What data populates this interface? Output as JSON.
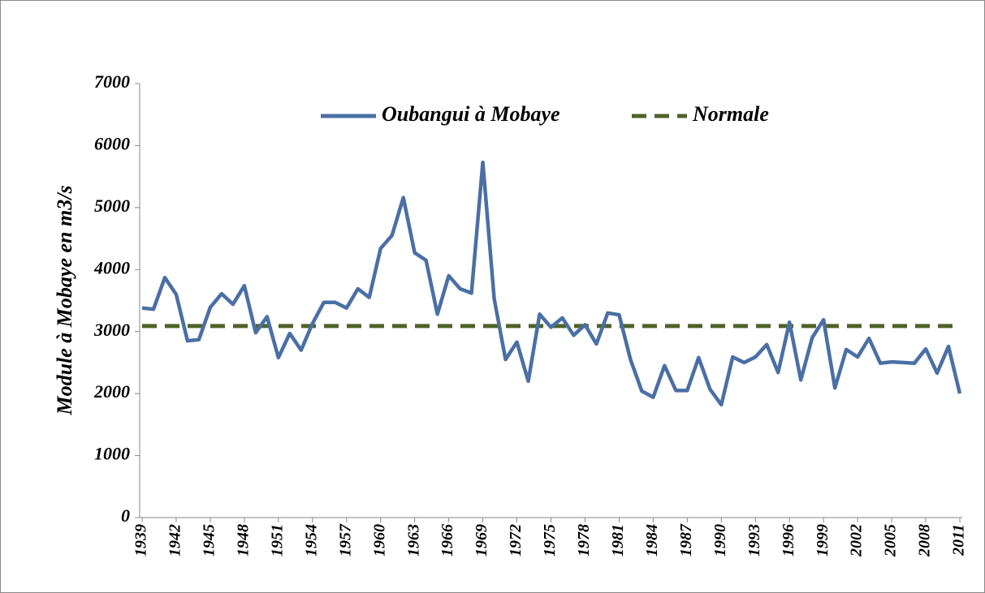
{
  "chart_data": {
    "type": "line",
    "y_label": "Module à Mobaye en m3/s",
    "x": [
      1939,
      1940,
      1941,
      1942,
      1943,
      1944,
      1945,
      1946,
      1947,
      1948,
      1949,
      1950,
      1951,
      1952,
      1953,
      1954,
      1955,
      1956,
      1957,
      1958,
      1959,
      1960,
      1961,
      1962,
      1963,
      1964,
      1965,
      1966,
      1967,
      1968,
      1969,
      1970,
      1971,
      1972,
      1973,
      1974,
      1975,
      1976,
      1977,
      1978,
      1979,
      1980,
      1981,
      1982,
      1983,
      1984,
      1985,
      1986,
      1987,
      1988,
      1989,
      1990,
      1991,
      1992,
      1993,
      1994,
      1995,
      1996,
      1997,
      1998,
      1999,
      2000,
      2001,
      2002,
      2003,
      2004,
      2005,
      2006,
      2007,
      2008,
      2009,
      2010,
      2011
    ],
    "series": [
      {
        "name": "Oubangui à Mobaye",
        "color": "#4a6fa5",
        "dash": false,
        "values": [
          3380,
          3360,
          3870,
          3600,
          2850,
          2870,
          3390,
          3610,
          3440,
          3740,
          2980,
          3240,
          2580,
          2970,
          2700,
          3130,
          3470,
          3470,
          3380,
          3690,
          3550,
          4340,
          4550,
          5160,
          4270,
          4150,
          3280,
          3900,
          3690,
          3620,
          5730,
          3530,
          2550,
          2830,
          2200,
          3280,
          3070,
          3220,
          2940,
          3110,
          2800,
          3300,
          3270,
          2550,
          2040,
          1940,
          2450,
          2050,
          2050,
          2580,
          2070,
          1820,
          2590,
          2500,
          2590,
          2790,
          2340,
          3150,
          2220,
          2900,
          3190,
          2090,
          2710,
          2590,
          2890,
          2490,
          2510,
          2500,
          2490,
          2720,
          2330,
          2760,
          2000
        ]
      },
      {
        "name": "Normale",
        "color": "#4f6228",
        "dash": true,
        "values": [
          3090,
          3090,
          3090,
          3090,
          3090,
          3090,
          3090,
          3090,
          3090,
          3090,
          3090,
          3090,
          3090,
          3090,
          3090,
          3090,
          3090,
          3090,
          3090,
          3090,
          3090,
          3090,
          3090,
          3090,
          3090,
          3090,
          3090,
          3090,
          3090,
          3090,
          3090,
          3090,
          3090,
          3090,
          3090,
          3090,
          3090,
          3090,
          3090,
          3090,
          3090,
          3090,
          3090,
          3090,
          3090,
          3090,
          3090,
          3090,
          3090,
          3090,
          3090,
          3090,
          3090,
          3090,
          3090,
          3090,
          3090,
          3090,
          3090,
          3090,
          3090,
          3090,
          3090,
          3090,
          3090,
          3090,
          3090,
          3090,
          3090,
          3090,
          3090,
          3090,
          3090
        ]
      }
    ],
    "xlim": [
      1939,
      2011
    ],
    "xticks": [
      1939,
      1942,
      1945,
      1948,
      1951,
      1954,
      1957,
      1960,
      1963,
      1966,
      1969,
      1972,
      1975,
      1978,
      1981,
      1984,
      1987,
      1990,
      1993,
      1996,
      1999,
      2002,
      2005,
      2008,
      2011
    ],
    "ylim": [
      0,
      7000
    ],
    "yticks": [
      0,
      1000,
      2000,
      3000,
      4000,
      5000,
      6000,
      7000
    ],
    "grid": false,
    "legend": "top"
  }
}
